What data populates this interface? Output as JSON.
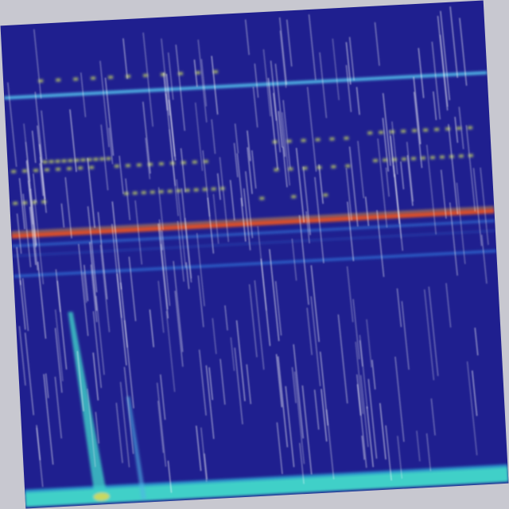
{
  "image": {
    "kind": "spectrogram-like heatmap with rain streak overlay",
    "colors": {
      "background": "#1f1f8f",
      "frame": "#c8c8d0",
      "cyan_line": "#4fb6e6",
      "hot_line": "#d8502a",
      "blue_line": "#2f6fd6",
      "bottom_band": "#3fd0c8",
      "dots": "#c8d860",
      "streak": "#ffffff"
    }
  }
}
